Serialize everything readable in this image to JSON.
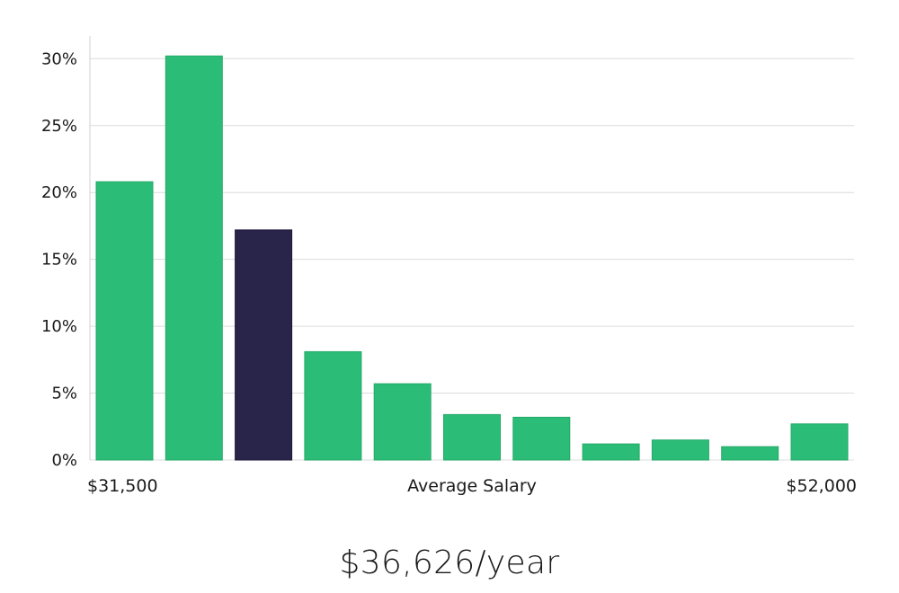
{
  "chart_data": {
    "type": "bar",
    "y_tick_labels": [
      "0%",
      "5%",
      "10%",
      "15%",
      "20%",
      "25%",
      "30%"
    ],
    "y_ticks": [
      0,
      5,
      10,
      15,
      20,
      25,
      30
    ],
    "ylim": [
      0,
      31.7
    ],
    "values": [
      20.8,
      30.2,
      17.2,
      8.1,
      5.7,
      3.4,
      3.2,
      1.2,
      1.5,
      1.0,
      2.7
    ],
    "highlight_index": 2,
    "x_min_label": "$31,500",
    "x_center_label": "Average Salary",
    "x_max_label": "$52,000",
    "grid": true
  },
  "colors": {
    "bar": "#2bbd77",
    "highlight": "#29244a",
    "grid": "#dcdcdc",
    "axis": "#d0d0d0"
  },
  "summary": {
    "salary": "$36,626/year"
  }
}
